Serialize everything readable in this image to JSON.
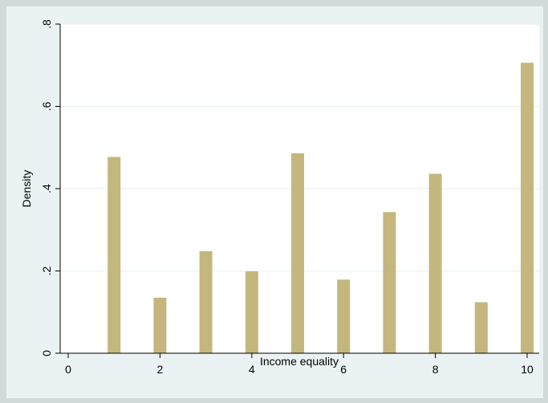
{
  "chart_data": {
    "type": "bar",
    "xlabel": "Income equality",
    "ylabel": "Density",
    "xlim": [
      0,
      10
    ],
    "ylim": [
      0,
      0.8
    ],
    "x_ticks": [
      {
        "value": 0,
        "label": "0"
      },
      {
        "value": 2,
        "label": "2"
      },
      {
        "value": 4,
        "label": "4"
      },
      {
        "value": 6,
        "label": "6"
      },
      {
        "value": 8,
        "label": "8"
      },
      {
        "value": 10,
        "label": "10"
      }
    ],
    "y_ticks": [
      {
        "value": 0,
        "label": "0"
      },
      {
        "value": 0.2,
        "label": ".2"
      },
      {
        "value": 0.4,
        "label": ".4"
      },
      {
        "value": 0.6,
        "label": ".6"
      },
      {
        "value": 0.8,
        "label": ".8"
      }
    ],
    "bars": [
      {
        "x": 1,
        "value": 0.477
      },
      {
        "x": 2,
        "value": 0.135
      },
      {
        "x": 3,
        "value": 0.248
      },
      {
        "x": 4,
        "value": 0.199
      },
      {
        "x": 5,
        "value": 0.486
      },
      {
        "x": 6,
        "value": 0.179
      },
      {
        "x": 7,
        "value": 0.343
      },
      {
        "x": 8,
        "value": 0.436
      },
      {
        "x": 9,
        "value": 0.124
      },
      {
        "x": 10,
        "value": 0.706
      }
    ],
    "grid": true,
    "colors": {
      "bar": "#c4b77d",
      "page_background": "#d1dad9",
      "plot_region": "#eaf2f3",
      "plot_area": "#ffffff",
      "grid": "#eaf2f3",
      "axis": "#000000"
    }
  }
}
